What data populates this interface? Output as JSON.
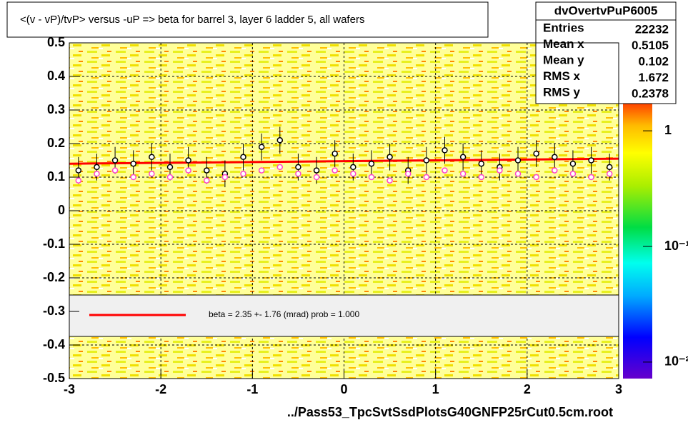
{
  "chart_data": {
    "type": "profile",
    "title": "<(v - vP)/tvP> versus  -uP => beta for barrel 3, layer 6 ladder 5, all wafers",
    "x_label": "../Pass53_TpcSvtSsdPlotsG40GNFP25rCut0.5cm.root",
    "xlim": [
      -3,
      3
    ],
    "xticks": [
      -3,
      -2,
      -1,
      0,
      1,
      2,
      3
    ],
    "ylim": [
      -0.5,
      0.5
    ],
    "yticks": [
      -0.5,
      -0.4,
      -0.3,
      -0.2,
      -0.1,
      0,
      0.1,
      0.2,
      0.3,
      0.4,
      0.5
    ],
    "grid": true,
    "x": [
      -2.9,
      -2.7,
      -2.5,
      -2.3,
      -2.1,
      -1.9,
      -1.7,
      -1.5,
      -1.3,
      -1.1,
      -0.9,
      -0.7,
      -0.5,
      -0.3,
      -0.1,
      0.1,
      0.3,
      0.5,
      0.7,
      0.9,
      1.1,
      1.3,
      1.5,
      1.7,
      1.9,
      2.1,
      2.3,
      2.5,
      2.7,
      2.9
    ],
    "series": [
      {
        "color": "#000000",
        "values": [
          0.12,
          0.13,
          0.15,
          0.14,
          0.16,
          0.13,
          0.15,
          0.12,
          0.11,
          0.16,
          0.19,
          0.21,
          0.13,
          0.12,
          0.17,
          0.13,
          0.14,
          0.16,
          0.12,
          0.15,
          0.18,
          0.16,
          0.14,
          0.13,
          0.15,
          0.17,
          0.16,
          0.14,
          0.15,
          0.13
        ],
        "errors": [
          0.04,
          0.04,
          0.04,
          0.04,
          0.04,
          0.04,
          0.04,
          0.04,
          0.04,
          0.04,
          0.04,
          0.04,
          0.04,
          0.04,
          0.04,
          0.04,
          0.04,
          0.04,
          0.04,
          0.04,
          0.04,
          0.04,
          0.04,
          0.04,
          0.04,
          0.04,
          0.04,
          0.04,
          0.04,
          0.04
        ]
      },
      {
        "color": "#ff44cc",
        "values": [
          0.09,
          0.11,
          0.12,
          0.1,
          0.11,
          0.1,
          0.12,
          0.09,
          0.1,
          0.11,
          0.12,
          0.13,
          0.11,
          0.1,
          0.12,
          0.11,
          0.1,
          0.09,
          0.11,
          0.1,
          0.12,
          0.11,
          0.1,
          0.12,
          0.11,
          0.1,
          0.12,
          0.11,
          0.1,
          0.11
        ]
      }
    ],
    "fit": {
      "color": "#ff0000",
      "x": [
        -3,
        3
      ],
      "values": [
        0.14,
        0.155
      ]
    },
    "legend_text": "beta =    2.35 +-  1.76 (mrad) prob = 1.000",
    "zlim": [
      0.0072,
      1.72
    ],
    "log_z": true,
    "zticks": [
      {
        "value": 1,
        "label": "1"
      },
      {
        "value": 0.1,
        "label": "10⁻¹"
      },
      {
        "value": 0.01,
        "label": "10⁻²"
      }
    ],
    "stats": {
      "title": "dvOvertvPuP6005",
      "rows": [
        {
          "label": "Entries",
          "value": "22232"
        },
        {
          "label": "Mean x",
          "value": "0.5105"
        },
        {
          "label": "Mean y",
          "value": "0.102"
        },
        {
          "label": "RMS x",
          "value": "1.672"
        },
        {
          "label": "RMS y",
          "value": "0.2378"
        }
      ]
    }
  }
}
